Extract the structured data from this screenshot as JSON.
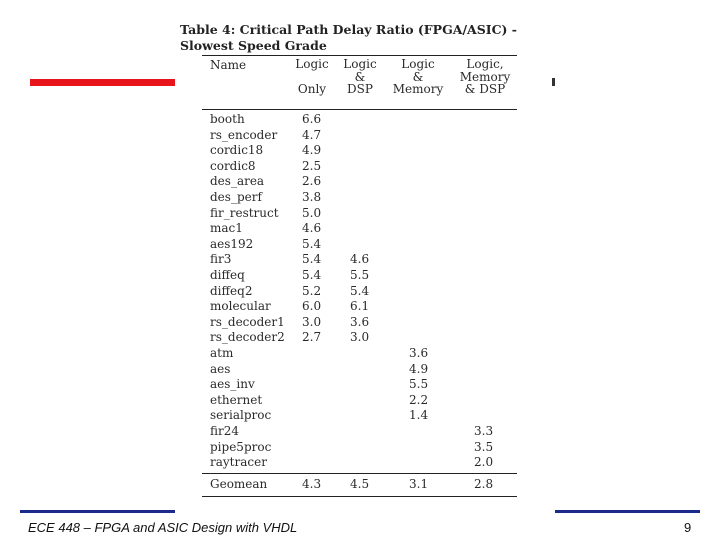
{
  "caption": {
    "line1": "Table 4: Critical Path Delay Ratio (FPGA/ASIC) -",
    "line2": "Slowest Speed Grade"
  },
  "table": {
    "headers": {
      "name": "Name",
      "col1": [
        "Logic",
        "",
        "Only"
      ],
      "col2": [
        "Logic",
        "&",
        "DSP"
      ],
      "col3": [
        "Logic",
        "&",
        "Memory"
      ],
      "col4": [
        "Logic,",
        "Memory",
        "& DSP"
      ]
    },
    "rows": [
      {
        "name": "booth",
        "a": "6.6",
        "b": "",
        "c": "",
        "d": ""
      },
      {
        "name": "rs_encoder",
        "a": "4.7",
        "b": "",
        "c": "",
        "d": ""
      },
      {
        "name": "cordic18",
        "a": "4.9",
        "b": "",
        "c": "",
        "d": ""
      },
      {
        "name": "cordic8",
        "a": "2.5",
        "b": "",
        "c": "",
        "d": ""
      },
      {
        "name": "des_area",
        "a": "2.6",
        "b": "",
        "c": "",
        "d": ""
      },
      {
        "name": "des_perf",
        "a": "3.8",
        "b": "",
        "c": "",
        "d": ""
      },
      {
        "name": "fir_restruct",
        "a": "5.0",
        "b": "",
        "c": "",
        "d": ""
      },
      {
        "name": "mac1",
        "a": "4.6",
        "b": "",
        "c": "",
        "d": ""
      },
      {
        "name": "aes192",
        "a": "5.4",
        "b": "",
        "c": "",
        "d": ""
      },
      {
        "name": "fir3",
        "a": "5.4",
        "b": "4.6",
        "c": "",
        "d": ""
      },
      {
        "name": "diffeq",
        "a": "5.4",
        "b": "5.5",
        "c": "",
        "d": ""
      },
      {
        "name": "diffeq2",
        "a": "5.2",
        "b": "5.4",
        "c": "",
        "d": ""
      },
      {
        "name": "molecular",
        "a": "6.0",
        "b": "6.1",
        "c": "",
        "d": ""
      },
      {
        "name": "rs_decoder1",
        "a": "3.0",
        "b": "3.6",
        "c": "",
        "d": ""
      },
      {
        "name": "rs_decoder2",
        "a": "2.7",
        "b": "3.0",
        "c": "",
        "d": ""
      },
      {
        "name": "atm",
        "a": "",
        "b": "",
        "c": "3.6",
        "d": ""
      },
      {
        "name": "aes",
        "a": "",
        "b": "",
        "c": "4.9",
        "d": ""
      },
      {
        "name": "aes_inv",
        "a": "",
        "b": "",
        "c": "5.5",
        "d": ""
      },
      {
        "name": "ethernet",
        "a": "",
        "b": "",
        "c": "2.2",
        "d": ""
      },
      {
        "name": "serialproc",
        "a": "",
        "b": "",
        "c": "1.4",
        "d": ""
      },
      {
        "name": "fir24",
        "a": "",
        "b": "",
        "c": "",
        "d": "3.3"
      },
      {
        "name": "pipe5proc",
        "a": "",
        "b": "",
        "c": "",
        "d": "3.5"
      },
      {
        "name": "raytracer",
        "a": "",
        "b": "",
        "c": "",
        "d": "2.0"
      }
    ],
    "geomean": {
      "name": "Geomean",
      "a": "4.3",
      "b": "4.5",
      "c": "3.1",
      "d": "2.8"
    }
  },
  "footer": {
    "course": "ECE 448 – FPGA and ASIC Design with VHDL",
    "page": "9"
  },
  "colors": {
    "accent_red": "#e8141c",
    "accent_blue": "#1c2a8c"
  }
}
